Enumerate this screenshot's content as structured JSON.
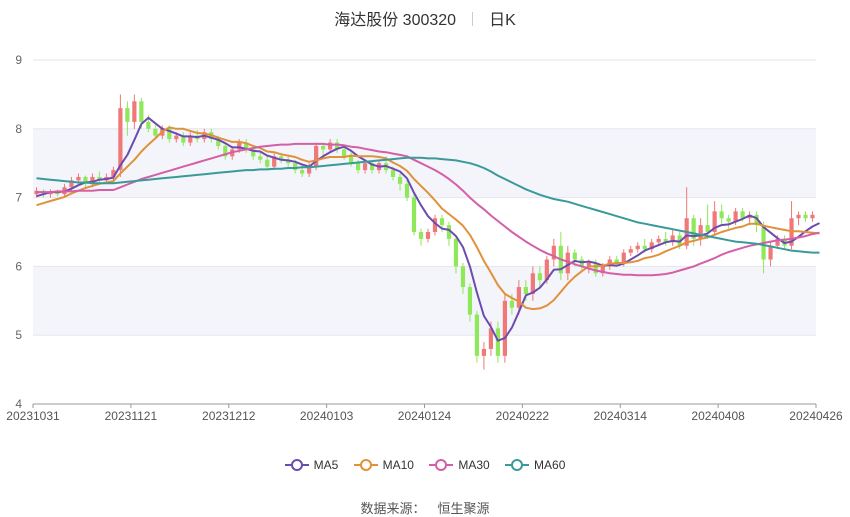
{
  "title": {
    "name": "海达股份 300320",
    "period": "日K"
  },
  "source": {
    "label": "数据来源：",
    "value": "恒生聚源"
  },
  "legend": [
    {
      "name": "MA5",
      "color": "#6a4cae"
    },
    {
      "name": "MA10",
      "color": "#e0913a"
    },
    {
      "name": "MA30",
      "color": "#d45fa6"
    },
    {
      "name": "MA60",
      "color": "#3a9a9a"
    }
  ],
  "colors": {
    "up": "#f07878",
    "down": "#8ee85a",
    "grid": "#e6e6ee",
    "band": "#f4f4fb"
  },
  "chart_data": {
    "type": "candlestick",
    "ylim": [
      4,
      9
    ],
    "yticks": [
      "4",
      "5",
      "6",
      "7",
      "8",
      "9"
    ],
    "xticks": [
      "20231031",
      "20231121",
      "20231212",
      "20240103",
      "20240124",
      "20240222",
      "20240314",
      "20240408",
      "20240426"
    ],
    "candles": [
      [
        7.05,
        7.1,
        7.15,
        7.0
      ],
      [
        7.1,
        7.05,
        7.12,
        7.0
      ],
      [
        7.05,
        7.08,
        7.12,
        7.0
      ],
      [
        7.08,
        7.05,
        7.12,
        7.02
      ],
      [
        7.05,
        7.15,
        7.2,
        7.02
      ],
      [
        7.15,
        7.25,
        7.3,
        7.1
      ],
      [
        7.25,
        7.3,
        7.35,
        7.2
      ],
      [
        7.3,
        7.2,
        7.32,
        7.15
      ],
      [
        7.2,
        7.3,
        7.35,
        7.15
      ],
      [
        7.3,
        7.25,
        7.38,
        7.2
      ],
      [
        7.25,
        7.3,
        7.35,
        7.2
      ],
      [
        7.3,
        7.4,
        7.45,
        7.2
      ],
      [
        7.4,
        8.3,
        8.5,
        7.3
      ],
      [
        8.3,
        8.1,
        8.4,
        7.9
      ],
      [
        8.1,
        8.4,
        8.5,
        8.0
      ],
      [
        8.4,
        8.1,
        8.45,
        8.0
      ],
      [
        8.1,
        8.0,
        8.2,
        7.95
      ],
      [
        8.0,
        7.9,
        8.05,
        7.85
      ],
      [
        7.9,
        8.0,
        8.05,
        7.85
      ],
      [
        8.0,
        7.85,
        8.05,
        7.8
      ],
      [
        7.85,
        7.9,
        7.95,
        7.8
      ],
      [
        7.9,
        7.8,
        7.95,
        7.75
      ],
      [
        7.8,
        7.9,
        7.95,
        7.75
      ],
      [
        7.9,
        7.85,
        7.98,
        7.8
      ],
      [
        7.85,
        7.95,
        8.0,
        7.8
      ],
      [
        7.95,
        7.85,
        8.0,
        7.8
      ],
      [
        7.85,
        7.75,
        7.9,
        7.7
      ],
      [
        7.75,
        7.6,
        7.8,
        7.55
      ],
      [
        7.6,
        7.7,
        7.75,
        7.55
      ],
      [
        7.7,
        7.8,
        7.85,
        7.65
      ],
      [
        7.8,
        7.7,
        7.85,
        7.65
      ],
      [
        7.7,
        7.6,
        7.75,
        7.55
      ],
      [
        7.6,
        7.55,
        7.65,
        7.5
      ],
      [
        7.55,
        7.45,
        7.6,
        7.4
      ],
      [
        7.45,
        7.6,
        7.65,
        7.4
      ],
      [
        7.6,
        7.55,
        7.65,
        7.5
      ],
      [
        7.55,
        7.5,
        7.6,
        7.45
      ],
      [
        7.5,
        7.4,
        7.55,
        7.35
      ],
      [
        7.4,
        7.35,
        7.5,
        7.3
      ],
      [
        7.35,
        7.45,
        7.5,
        7.3
      ],
      [
        7.45,
        7.75,
        7.8,
        7.4
      ],
      [
        7.75,
        7.7,
        7.8,
        7.6
      ],
      [
        7.7,
        7.8,
        7.85,
        7.65
      ],
      [
        7.8,
        7.7,
        7.85,
        7.65
      ],
      [
        7.7,
        7.6,
        7.75,
        7.55
      ],
      [
        7.6,
        7.5,
        7.65,
        7.45
      ],
      [
        7.5,
        7.4,
        7.55,
        7.35
      ],
      [
        7.4,
        7.5,
        7.55,
        7.35
      ],
      [
        7.5,
        7.4,
        7.55,
        7.35
      ],
      [
        7.4,
        7.5,
        7.55,
        7.35
      ],
      [
        7.5,
        7.4,
        7.6,
        7.35
      ],
      [
        7.4,
        7.3,
        7.45,
        7.25
      ],
      [
        7.3,
        7.2,
        7.35,
        7.1
      ],
      [
        7.2,
        7.0,
        7.25,
        6.95
      ],
      [
        7.0,
        6.5,
        7.05,
        6.45
      ],
      [
        6.5,
        6.4,
        6.55,
        6.3
      ],
      [
        6.4,
        6.5,
        6.55,
        6.35
      ],
      [
        6.5,
        6.7,
        6.75,
        6.45
      ],
      [
        6.7,
        6.6,
        6.75,
        6.5
      ],
      [
        6.6,
        6.4,
        6.65,
        6.3
      ],
      [
        6.4,
        6.0,
        6.45,
        5.9
      ],
      [
        6.0,
        5.7,
        6.05,
        5.6
      ],
      [
        5.7,
        5.3,
        5.75,
        5.2
      ],
      [
        5.3,
        4.7,
        5.35,
        4.6
      ],
      [
        4.7,
        4.8,
        4.9,
        4.5
      ],
      [
        4.8,
        5.1,
        5.2,
        4.7
      ],
      [
        5.1,
        4.7,
        5.2,
        4.6
      ],
      [
        4.7,
        5.5,
        5.6,
        4.6
      ],
      [
        5.5,
        5.4,
        5.6,
        5.3
      ],
      [
        5.4,
        5.7,
        5.8,
        5.3
      ],
      [
        5.7,
        5.6,
        5.8,
        5.5
      ],
      [
        5.6,
        5.9,
        6.0,
        5.5
      ],
      [
        5.9,
        5.8,
        6.0,
        5.7
      ],
      [
        5.8,
        6.1,
        6.15,
        5.75
      ],
      [
        6.1,
        6.3,
        6.4,
        6.0
      ],
      [
        6.3,
        5.9,
        6.5,
        5.8
      ],
      [
        5.9,
        6.2,
        6.3,
        5.8
      ],
      [
        6.2,
        6.1,
        6.25,
        6.0
      ],
      [
        6.1,
        6.0,
        6.15,
        5.95
      ],
      [
        6.0,
        6.05,
        6.1,
        5.9
      ],
      [
        6.05,
        5.9,
        6.1,
        5.85
      ],
      [
        5.9,
        6.0,
        6.05,
        5.85
      ],
      [
        6.0,
        6.1,
        6.15,
        5.95
      ],
      [
        6.1,
        6.05,
        6.15,
        6.0
      ],
      [
        6.05,
        6.2,
        6.25,
        6.0
      ],
      [
        6.2,
        6.25,
        6.3,
        6.15
      ],
      [
        6.25,
        6.3,
        6.35,
        6.2
      ],
      [
        6.3,
        6.25,
        6.4,
        6.2
      ],
      [
        6.25,
        6.35,
        6.4,
        6.2
      ],
      [
        6.35,
        6.4,
        6.45,
        6.3
      ],
      [
        6.4,
        6.35,
        6.5,
        6.3
      ],
      [
        6.35,
        6.45,
        6.55,
        6.3
      ],
      [
        6.45,
        6.3,
        6.5,
        6.25
      ],
      [
        6.3,
        6.7,
        7.15,
        6.25
      ],
      [
        6.7,
        6.4,
        6.75,
        6.3
      ],
      [
        6.4,
        6.6,
        6.7,
        6.3
      ],
      [
        6.6,
        6.5,
        6.9,
        6.4
      ],
      [
        6.5,
        6.8,
        6.95,
        6.45
      ],
      [
        6.8,
        6.7,
        6.9,
        6.6
      ],
      [
        6.7,
        6.65,
        6.75,
        6.55
      ],
      [
        6.65,
        6.8,
        6.85,
        6.6
      ],
      [
        6.8,
        6.7,
        6.85,
        6.65
      ],
      [
        6.7,
        6.75,
        6.8,
        6.6
      ],
      [
        6.75,
        6.6,
        6.8,
        6.5
      ],
      [
        6.6,
        6.1,
        6.65,
        5.9
      ],
      [
        6.1,
        6.3,
        6.35,
        6.0
      ],
      [
        6.3,
        6.4,
        6.45,
        6.25
      ],
      [
        6.4,
        6.3,
        6.45,
        6.25
      ],
      [
        6.3,
        6.7,
        6.95,
        6.25
      ],
      [
        6.7,
        6.75,
        6.8,
        6.6
      ],
      [
        6.75,
        6.7,
        6.8,
        6.65
      ],
      [
        6.7,
        6.75,
        6.8,
        6.65
      ]
    ],
    "series": [
      {
        "name": "MA5",
        "values": [
          7.02,
          7.05,
          7.08,
          7.08,
          7.09,
          7.13,
          7.18,
          7.22,
          7.23,
          7.26,
          7.27,
          7.29,
          7.47,
          7.62,
          7.84,
          8.07,
          8.16,
          8.08,
          8.0,
          7.97,
          7.93,
          7.89,
          7.89,
          7.88,
          7.9,
          7.87,
          7.84,
          7.79,
          7.73,
          7.73,
          7.71,
          7.68,
          7.67,
          7.61,
          7.58,
          7.55,
          7.54,
          7.52,
          7.48,
          7.45,
          7.53,
          7.6,
          7.66,
          7.71,
          7.74,
          7.68,
          7.6,
          7.54,
          7.48,
          7.45,
          7.46,
          7.42,
          7.38,
          7.28,
          7.07,
          6.89,
          6.73,
          6.63,
          6.55,
          6.53,
          6.44,
          6.28,
          6.0,
          5.62,
          5.28,
          5.12,
          4.92,
          4.96,
          5.11,
          5.34,
          5.58,
          5.62,
          5.69,
          5.81,
          5.95,
          5.96,
          6.02,
          6.08,
          6.06,
          6.07,
          6.05,
          6.01,
          6.02,
          6.01,
          6.04,
          6.1,
          6.16,
          6.23,
          6.27,
          6.31,
          6.35,
          6.37,
          6.36,
          6.45,
          6.44,
          6.45,
          6.48,
          6.56,
          6.6,
          6.61,
          6.65,
          6.69,
          6.74,
          6.7,
          6.57,
          6.49,
          6.41,
          6.34,
          6.36,
          6.43,
          6.51,
          6.58,
          6.63
        ]
      },
      {
        "name": "MA10",
        "values": [
          6.89,
          6.92,
          6.95,
          6.98,
          7.01,
          7.06,
          7.1,
          7.14,
          7.17,
          7.2,
          7.22,
          7.24,
          7.35,
          7.45,
          7.55,
          7.67,
          7.77,
          7.86,
          7.96,
          8.02,
          8.0,
          8.0,
          7.97,
          7.94,
          7.93,
          7.91,
          7.87,
          7.84,
          7.81,
          7.81,
          7.79,
          7.75,
          7.72,
          7.67,
          7.66,
          7.63,
          7.61,
          7.59,
          7.55,
          7.52,
          7.54,
          7.57,
          7.59,
          7.59,
          7.59,
          7.61,
          7.6,
          7.6,
          7.6,
          7.59,
          7.57,
          7.51,
          7.46,
          7.39,
          7.27,
          7.17,
          7.07,
          6.96,
          6.84,
          6.76,
          6.68,
          6.59,
          6.46,
          6.28,
          6.08,
          5.91,
          5.73,
          5.6,
          5.54,
          5.49,
          5.4,
          5.38,
          5.39,
          5.43,
          5.51,
          5.63,
          5.75,
          5.85,
          5.93,
          6.0,
          6.0,
          6.01,
          6.04,
          6.05,
          6.05,
          6.06,
          6.08,
          6.12,
          6.14,
          6.17,
          6.22,
          6.26,
          6.3,
          6.35,
          6.37,
          6.4,
          6.42,
          6.46,
          6.5,
          6.53,
          6.56,
          6.58,
          6.62,
          6.62,
          6.59,
          6.57,
          6.55,
          6.53,
          6.51,
          6.51,
          6.5,
          6.49,
          6.48
        ]
      },
      {
        "name": "MA30",
        "values": [
          7.08,
          7.08,
          7.08,
          7.09,
          7.09,
          7.09,
          7.1,
          7.1,
          7.1,
          7.11,
          7.11,
          7.11,
          7.15,
          7.19,
          7.23,
          7.27,
          7.3,
          7.33,
          7.36,
          7.39,
          7.42,
          7.45,
          7.48,
          7.51,
          7.54,
          7.57,
          7.6,
          7.63,
          7.66,
          7.68,
          7.7,
          7.72,
          7.74,
          7.75,
          7.76,
          7.77,
          7.77,
          7.78,
          7.78,
          7.78,
          7.78,
          7.78,
          7.77,
          7.77,
          7.76,
          7.74,
          7.73,
          7.71,
          7.69,
          7.67,
          7.66,
          7.64,
          7.62,
          7.6,
          7.55,
          7.5,
          7.45,
          7.4,
          7.34,
          7.27,
          7.19,
          7.1,
          7.0,
          6.91,
          6.83,
          6.74,
          6.66,
          6.58,
          6.5,
          6.43,
          6.36,
          6.3,
          6.24,
          6.19,
          6.15,
          6.1,
          6.07,
          6.03,
          6.0,
          5.97,
          5.94,
          5.92,
          5.9,
          5.89,
          5.88,
          5.88,
          5.87,
          5.87,
          5.87,
          5.88,
          5.89,
          5.91,
          5.94,
          5.97,
          6.0,
          6.04,
          6.08,
          6.12,
          6.17,
          6.21,
          6.24,
          6.27,
          6.3,
          6.32,
          6.34,
          6.36,
          6.38,
          6.39,
          6.4,
          6.42,
          6.44,
          6.47,
          6.49
        ]
      },
      {
        "name": "MA60",
        "values": [
          7.28,
          7.27,
          7.26,
          7.25,
          7.24,
          7.23,
          7.22,
          7.22,
          7.21,
          7.21,
          7.21,
          7.21,
          7.22,
          7.23,
          7.24,
          7.25,
          7.26,
          7.27,
          7.28,
          7.29,
          7.3,
          7.31,
          7.32,
          7.33,
          7.34,
          7.35,
          7.36,
          7.37,
          7.38,
          7.39,
          7.4,
          7.4,
          7.41,
          7.41,
          7.42,
          7.42,
          7.43,
          7.43,
          7.44,
          7.44,
          7.45,
          7.46,
          7.47,
          7.48,
          7.49,
          7.5,
          7.51,
          7.52,
          7.53,
          7.54,
          7.55,
          7.56,
          7.57,
          7.58,
          7.58,
          7.58,
          7.57,
          7.57,
          7.56,
          7.55,
          7.54,
          7.52,
          7.5,
          7.47,
          7.43,
          7.38,
          7.32,
          7.27,
          7.22,
          7.17,
          7.12,
          7.08,
          7.04,
          7.01,
          6.98,
          6.96,
          6.94,
          6.91,
          6.88,
          6.85,
          6.82,
          6.79,
          6.76,
          6.73,
          6.7,
          6.67,
          6.64,
          6.62,
          6.6,
          6.58,
          6.56,
          6.54,
          6.52,
          6.5,
          6.48,
          6.46,
          6.44,
          6.42,
          6.4,
          6.38,
          6.36,
          6.35,
          6.34,
          6.33,
          6.31,
          6.29,
          6.27,
          6.25,
          6.23,
          6.22,
          6.21,
          6.2,
          6.2
        ]
      }
    ]
  }
}
